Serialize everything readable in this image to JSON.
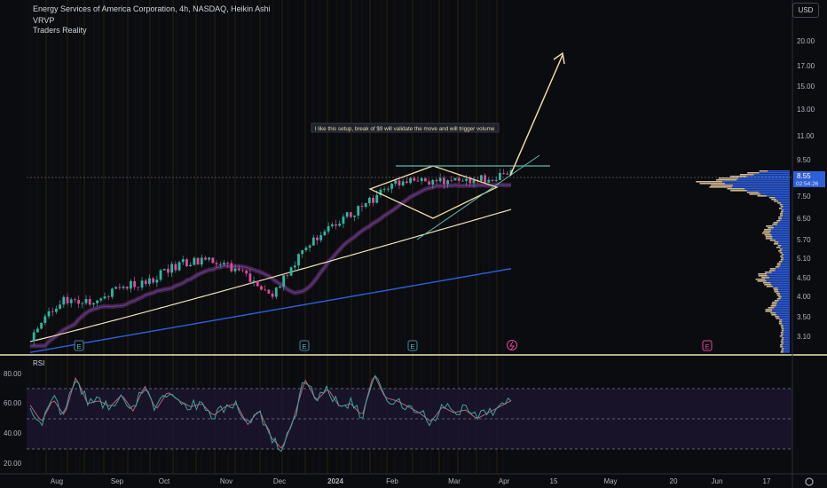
{
  "header": {
    "symbol_line": "Energy Services of America Corporation, 4h, NASDAQ, Heikin Ashi",
    "indicator_1": "VRVP",
    "indicator_2": "Traders Reality"
  },
  "currency_button": "USD",
  "price_axis": {
    "ticks": [
      "20.00",
      "17.00",
      "15.00",
      "13.00",
      "11.00",
      "9.50",
      "7.50",
      "6.50",
      "5.70",
      "5.10",
      "4.50",
      "4.00",
      "3.50",
      "3.10"
    ],
    "last_price": "8.55",
    "countdown": "02:54:26"
  },
  "annotation": "I like this setup, break of $9 will validate the move and will trigger volume",
  "rsi": {
    "label": "RSI",
    "ticks": [
      "80.00",
      "60.00",
      "40.00",
      "20.00"
    ]
  },
  "time_axis": {
    "ticks": [
      "Aug",
      "Sep",
      "Oct",
      "Nov",
      "Dec",
      "2024",
      "Feb",
      "Mar",
      "Apr",
      "15",
      "May",
      "20",
      "Jun",
      "17"
    ]
  },
  "event_markers": [
    "E",
    "E",
    "E",
    "E"
  ],
  "colors": {
    "background": "#0b0c10",
    "candle_up": "#2bb8a0",
    "candle_down": "#e0489a",
    "pattern": "#f0d9a8",
    "long_ma": "#2f5fd6",
    "mid_ma": "#efe3b8",
    "rsi_line": "#3aa59a",
    "rsi_ma": "#e06a8a",
    "volume_profile_up": "#2e63f0",
    "volume_profile_down": "#efd6a6"
  },
  "chart_data": {
    "type": "line",
    "title": "Energy Services of America Corporation, 4h, NASDAQ, Heikin Ashi",
    "price_scale": "log",
    "ylim": [
      3.0,
      22.0
    ],
    "x_ticks": [
      "Aug",
      "Sep",
      "Oct",
      "Nov",
      "Dec",
      "2024",
      "Feb",
      "Mar",
      "Apr",
      "15",
      "May",
      "20",
      "Jun",
      "17"
    ],
    "series": [
      {
        "name": "Price",
        "x": [
          "Aug",
          "",
          "Sep",
          "",
          "Oct",
          "",
          "Nov",
          "",
          "Dec",
          "",
          "2024",
          "",
          "Feb",
          "",
          "Mar",
          "",
          "Apr"
        ],
        "values": [
          3.1,
          3.9,
          3.9,
          4.2,
          4.4,
          4.9,
          5.0,
          4.7,
          3.9,
          5.2,
          6.3,
          6.9,
          8.1,
          8.3,
          8.2,
          8.4,
          8.6
        ]
      }
    ],
    "annotations": [
      "I like this setup, break of $9 will validate the move and will trigger volume"
    ],
    "rsi": {
      "ylim": [
        15,
        90
      ],
      "levels": [
        70,
        50,
        30
      ],
      "values": [
        59,
        48,
        63,
        52,
        78,
        60,
        62,
        58,
        66,
        55,
        72,
        56,
        68,
        62,
        58,
        60,
        52,
        58,
        60,
        46,
        56,
        38,
        30,
        50,
        76,
        62,
        70,
        58,
        60,
        52,
        80,
        64,
        62,
        58,
        54,
        48,
        58,
        54,
        56,
        50,
        54,
        58,
        62
      ]
    }
  }
}
